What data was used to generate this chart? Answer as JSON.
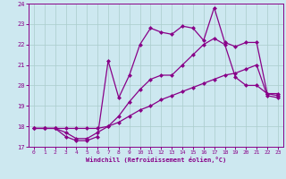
{
  "xlabel": "Windchill (Refroidissement éolien,°C)",
  "xlim": [
    -0.5,
    23.5
  ],
  "ylim": [
    17,
    24
  ],
  "xticks": [
    0,
    1,
    2,
    3,
    4,
    5,
    6,
    7,
    8,
    9,
    10,
    11,
    12,
    13,
    14,
    15,
    16,
    17,
    18,
    19,
    20,
    21,
    22,
    23
  ],
  "yticks": [
    17,
    18,
    19,
    20,
    21,
    22,
    23,
    24
  ],
  "background_color": "#cde8f0",
  "line_color": "#880088",
  "grid_color": "#aacccc",
  "line1_x": [
    0,
    1,
    2,
    3,
    4,
    5,
    6,
    7,
    8,
    9,
    10,
    11,
    12,
    13,
    14,
    15,
    16,
    17,
    18,
    19,
    20,
    21,
    22,
    23
  ],
  "line1_y": [
    17.9,
    17.9,
    17.9,
    17.9,
    17.9,
    17.9,
    17.9,
    18.0,
    18.2,
    18.5,
    18.8,
    19.0,
    19.3,
    19.5,
    19.7,
    19.9,
    20.1,
    20.3,
    20.5,
    20.6,
    20.8,
    21.0,
    19.5,
    19.4
  ],
  "line2_x": [
    0,
    1,
    2,
    3,
    4,
    5,
    6,
    7,
    8,
    9,
    10,
    11,
    12,
    13,
    14,
    15,
    16,
    17,
    18,
    19,
    20,
    21,
    22,
    23
  ],
  "line2_y": [
    17.9,
    17.9,
    17.9,
    17.7,
    17.4,
    17.4,
    17.7,
    18.0,
    18.5,
    19.2,
    19.8,
    20.3,
    20.5,
    20.5,
    21.0,
    21.5,
    22.0,
    22.3,
    22.0,
    20.4,
    20.0,
    20.0,
    19.6,
    19.5
  ],
  "line3_x": [
    0,
    1,
    2,
    3,
    4,
    5,
    6,
    7,
    8,
    9,
    10,
    11,
    12,
    13,
    14,
    15,
    16,
    17,
    18,
    19,
    20,
    21,
    22,
    23
  ],
  "line3_y": [
    17.9,
    17.9,
    17.9,
    17.5,
    17.3,
    17.3,
    17.5,
    21.2,
    19.4,
    20.5,
    22.0,
    22.8,
    22.6,
    22.5,
    22.9,
    22.8,
    22.2,
    23.8,
    22.1,
    21.9,
    22.1,
    22.1,
    19.6,
    19.6
  ],
  "marker": "D",
  "markersize": 2.5,
  "linewidth": 0.9
}
